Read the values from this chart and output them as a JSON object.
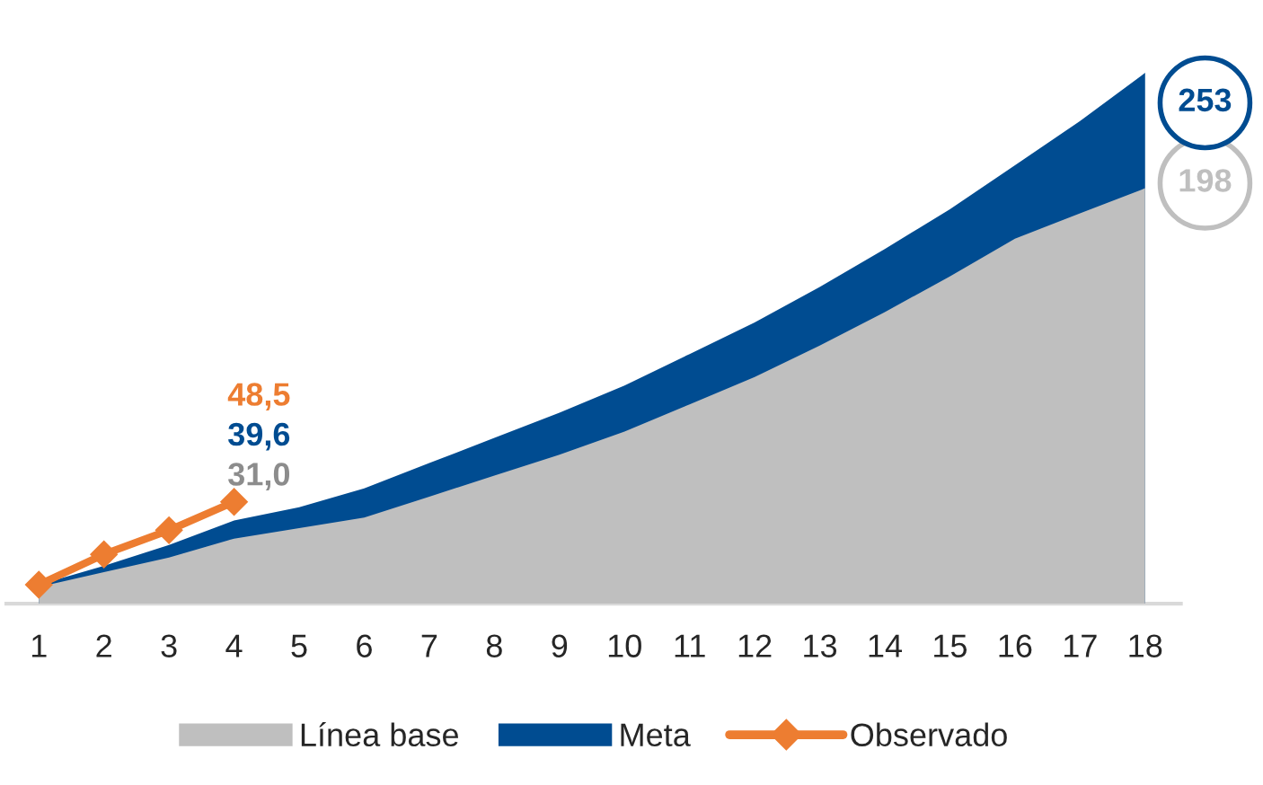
{
  "chart_data": {
    "type": "area",
    "categories": [
      "1",
      "2",
      "3",
      "4",
      "5",
      "6",
      "7",
      "8",
      "9",
      "10",
      "11",
      "12",
      "13",
      "14",
      "15",
      "16",
      "17",
      "18"
    ],
    "series": [
      {
        "name": "Línea base",
        "color": "#bfbfbf",
        "values": [
          8,
          15,
          22,
          31.0,
          36,
          41,
          51,
          61,
          71,
          82,
          95,
          108,
          123,
          139,
          156,
          174,
          186,
          198
        ],
        "value_labels": [
          null,
          null,
          null,
          "31,0",
          null,
          null,
          null,
          null,
          null,
          null,
          null,
          null,
          null,
          null,
          null,
          null,
          null,
          "198"
        ]
      },
      {
        "name": "Meta",
        "color": "#004c91",
        "values": [
          9,
          18,
          28,
          39.6,
          46,
          55,
          67,
          79,
          91,
          104,
          119,
          134,
          151,
          169,
          188,
          209,
          230,
          253
        ],
        "value_labels": [
          null,
          null,
          null,
          "39,6",
          null,
          null,
          null,
          null,
          null,
          null,
          null,
          null,
          null,
          null,
          null,
          null,
          null,
          "253"
        ]
      },
      {
        "name": "Observado",
        "type": "line",
        "marker": "diamond",
        "color": "#ed7d31",
        "values": [
          9,
          23.5,
          35,
          48.5,
          null,
          null,
          null,
          null,
          null,
          null,
          null,
          null,
          null,
          null,
          null,
          null,
          null,
          null
        ],
        "value_labels": [
          null,
          null,
          null,
          "48,5",
          null,
          null,
          null,
          null,
          null,
          null,
          null,
          null,
          null,
          null,
          null,
          null,
          null,
          null
        ]
      }
    ],
    "line_style": "solid",
    "grid": false,
    "legend": "bottom"
  }
}
